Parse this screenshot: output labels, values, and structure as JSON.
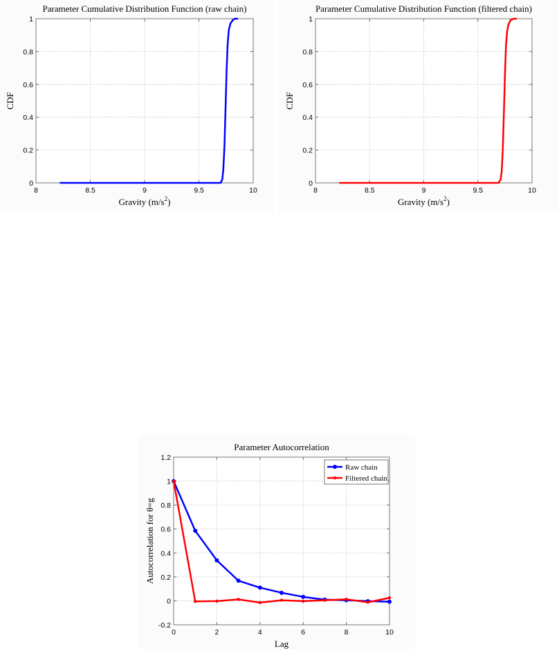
{
  "chart_data": [
    {
      "type": "line",
      "title": "Parameter Cumulative Distribution Function (raw chain)",
      "xlabel": "Gravity (m/s",
      "xlabel_sup": "2",
      "xlabel_close": ")",
      "ylabel": "CDF",
      "xlim": [
        8,
        10
      ],
      "ylim": [
        0,
        1
      ],
      "xticks": [
        8,
        8.5,
        9,
        9.5,
        10
      ],
      "xtick_labels": [
        "8",
        "8.5",
        "9",
        "9.5",
        "10"
      ],
      "yticks": [
        0,
        0.2,
        0.4,
        0.6,
        0.8,
        1
      ],
      "ytick_labels": [
        "0",
        "0.2",
        "0.4",
        "0.6",
        "0.8",
        "1"
      ],
      "grid": true,
      "color": "#0000ff",
      "x": [
        8.22,
        9.7,
        9.715,
        9.725,
        9.735,
        9.745,
        9.755,
        9.765,
        9.775,
        9.79,
        9.81,
        9.83,
        9.86
      ],
      "y": [
        0,
        0,
        0.02,
        0.08,
        0.22,
        0.45,
        0.68,
        0.85,
        0.93,
        0.97,
        0.99,
        1,
        1
      ]
    },
    {
      "type": "line",
      "title": "Parameter Cumulative Distribution Function (filtered chain)",
      "xlabel": "Gravity (m/s",
      "xlabel_sup": "2",
      "xlabel_close": ")",
      "ylabel": "CDF",
      "xlim": [
        8,
        10
      ],
      "ylim": [
        0,
        1
      ],
      "xticks": [
        8,
        8.5,
        9,
        9.5,
        10
      ],
      "xtick_labels": [
        "8",
        "8.5",
        "9",
        "9.5",
        "10"
      ],
      "yticks": [
        0,
        0.2,
        0.4,
        0.6,
        0.8,
        1
      ],
      "ytick_labels": [
        "0",
        "0.2",
        "0.4",
        "0.6",
        "0.8",
        "1"
      ],
      "grid": true,
      "color": "#ff0000",
      "x": [
        8.22,
        9.69,
        9.71,
        9.72,
        9.73,
        9.74,
        9.75,
        9.76,
        9.77,
        9.78,
        9.8,
        9.83,
        9.86
      ],
      "y": [
        0,
        0,
        0.02,
        0.07,
        0.2,
        0.42,
        0.66,
        0.84,
        0.92,
        0.96,
        0.99,
        1,
        1
      ]
    },
    {
      "type": "line",
      "title": "Parameter Autocorrelation",
      "xlabel": "Lag",
      "ylabel": "Autocorrelation for θ=g",
      "xlim": [
        0,
        10
      ],
      "ylim": [
        -0.2,
        1.2
      ],
      "xticks": [
        0,
        2,
        4,
        6,
        8,
        10
      ],
      "xtick_labels": [
        "0",
        "2",
        "4",
        "6",
        "8",
        "10"
      ],
      "yticks": [
        -0.2,
        0,
        0.2,
        0.4,
        0.6,
        0.8,
        1,
        1.2
      ],
      "ytick_labels": [
        "-0.2",
        "0",
        "0.2",
        "0.4",
        "0.6",
        "0.8",
        "1",
        "1.2"
      ],
      "grid": true,
      "legend_position": "top-right",
      "x": [
        0,
        1,
        2,
        3,
        4,
        5,
        6,
        7,
        8,
        9,
        10
      ],
      "series": [
        {
          "name": "Raw chain",
          "color": "#0000ff",
          "values": [
            1,
            0.585,
            0.338,
            0.168,
            0.11,
            0.067,
            0.033,
            0.01,
            0.005,
            -0.003,
            -0.008
          ]
        },
        {
          "name": "Filtered chain",
          "color": "#ff0000",
          "values": [
            1,
            -0.005,
            -0.003,
            0.012,
            -0.015,
            0.005,
            -0.003,
            0.005,
            0.013,
            -0.012,
            0.025
          ]
        }
      ]
    }
  ]
}
